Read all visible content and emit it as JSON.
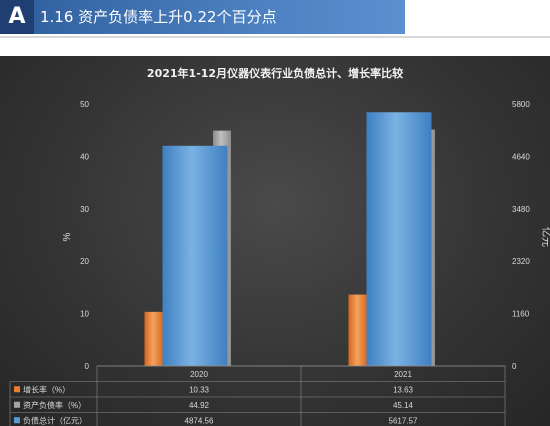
{
  "header": {
    "logo_text": "A",
    "title": "1.16 资产负债率上升0.22个百分点"
  },
  "chart_data": {
    "type": "bar",
    "title": "2021年1-12月仪器仪表行业负债总计、增长率比较",
    "categories": [
      "2020",
      "2021"
    ],
    "y_left": {
      "label": "%",
      "ticks": [
        "0",
        "10",
        "20",
        "30",
        "40",
        "50"
      ],
      "range": [
        0,
        50
      ]
    },
    "y_right": {
      "label": "亿元",
      "ticks": [
        "0",
        "1160",
        "2320",
        "3480",
        "4640",
        "5800"
      ],
      "range": [
        0,
        5800
      ]
    },
    "grid": false,
    "legend": "data-table-below",
    "series": [
      {
        "name": "增长率（%）",
        "axis": "left",
        "color": "#ed7d31",
        "values": [
          10.33,
          13.63
        ],
        "labels": [
          "10.33",
          "13.63"
        ]
      },
      {
        "name": "资产负债率（%）",
        "axis": "left",
        "color": "#a5a5a5",
        "values": [
          44.92,
          45.14
        ],
        "labels": [
          "44.92",
          "45.14"
        ]
      },
      {
        "name": "负债总计（亿元）",
        "axis": "right",
        "color": "#5b9bd5",
        "values": [
          4874.56,
          5617.57
        ],
        "labels": [
          "4874.56",
          "5617.57"
        ]
      }
    ]
  }
}
